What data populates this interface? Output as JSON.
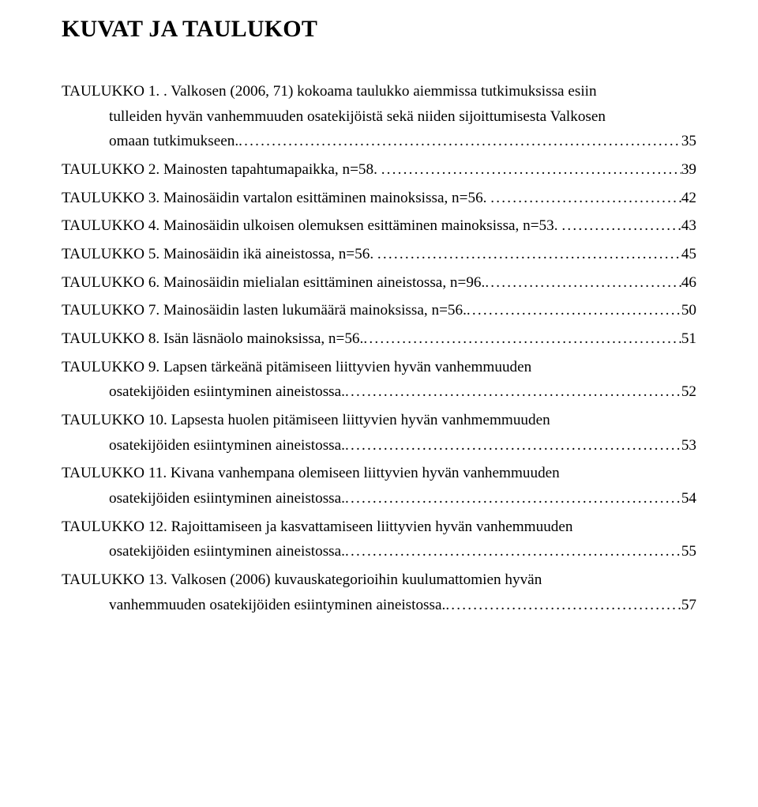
{
  "heading": "KUVAT JA TAULUKOT",
  "dots": "..........................................................................................................................................................................................................",
  "entries": [
    {
      "first": "TAULUKKO 1. . Valkosen (2006, 71) kokoama taulukko aiemmissa tutkimuksissa esiin",
      "cont": [
        "tulleiden hyvän vanhemmuuden osatekijöistä sekä niiden sijoittumisesta Valkosen"
      ],
      "last": "omaan tutkimukseen.",
      "page": "35"
    },
    {
      "first": "TAULUKKO 2. Mainosten tapahtumapaikka, n=58. ",
      "cont": [],
      "last": "",
      "page": "39",
      "single": true
    },
    {
      "first": "TAULUKKO 3. Mainosäidin vartalon esittäminen mainoksissa, n=56. ",
      "cont": [],
      "last": "",
      "page": "42",
      "single": true
    },
    {
      "first": "TAULUKKO 4. Mainosäidin ulkoisen olemuksen esittäminen mainoksissa, n=53. ",
      "cont": [],
      "last": "",
      "page": "43",
      "single": true
    },
    {
      "first": "TAULUKKO 5. Mainosäidin ikä aineistossa, n=56. ",
      "cont": [],
      "last": "",
      "page": "45",
      "single": true
    },
    {
      "first": "TAULUKKO 6. Mainosäidin mielialan esittäminen aineistossa, n=96.",
      "cont": [],
      "last": "",
      "page": "46",
      "single": true
    },
    {
      "first": "TAULUKKO 7. Mainosäidin lasten lukumäärä mainoksissa, n=56.",
      "cont": [],
      "last": "",
      "page": "50",
      "single": true
    },
    {
      "first": "TAULUKKO 8. Isän läsnäolo mainoksissa, n=56.",
      "cont": [],
      "last": "",
      "page": "51",
      "single": true
    },
    {
      "first": "TAULUKKO 9. Lapsen tärkeänä pitämiseen liittyvien hyvän vanhemmuuden",
      "cont": [],
      "last": "osatekijöiden esiintyminen aineistossa.",
      "page": "52"
    },
    {
      "first": "TAULUKKO 10. Lapsesta huolen pitämiseen liittyvien hyvän vanhmemmuuden",
      "cont": [],
      "last": "osatekijöiden esiintyminen aineistossa.",
      "page": "53"
    },
    {
      "first": "TAULUKKO 11. Kivana vanhempana olemiseen liittyvien hyvän vanhemmuuden",
      "cont": [],
      "last": "osatekijöiden esiintyminen aineistossa.",
      "page": "54"
    },
    {
      "first": "TAULUKKO 12. Rajoittamiseen ja kasvattamiseen liittyvien hyvän vanhemmuuden",
      "cont": [],
      "last": "osatekijöiden esiintyminen aineistossa.",
      "page": "55"
    },
    {
      "first": "TAULUKKO 13. Valkosen (2006) kuvauskategorioihin kuulumattomien hyvän",
      "cont": [],
      "last": "vanhemmuuden osatekijöiden esiintyminen aineistossa.",
      "page": "57"
    }
  ]
}
